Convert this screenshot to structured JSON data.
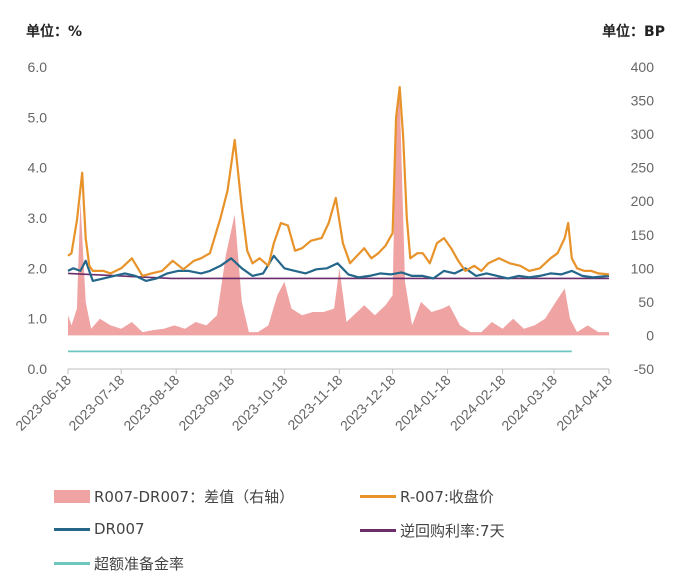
{
  "units": {
    "left": "单位：%",
    "right": "单位：BP"
  },
  "legend": [
    {
      "key": "spread",
      "label": "R007-DR007：差值（右轴）",
      "type": "box"
    },
    {
      "key": "r007",
      "label": "R-007:收盘价",
      "type": "line"
    },
    {
      "key": "dr007",
      "label": "DR007",
      "type": "line"
    },
    {
      "key": "repo",
      "label": "逆回购利率:7天",
      "type": "line"
    },
    {
      "key": "excess",
      "label": "超额准备金率",
      "type": "line"
    }
  ],
  "chart_data": {
    "type": "line",
    "x_tick_labels": [
      "2023-06-18",
      "2023-07-18",
      "2023-08-18",
      "2023-09-18",
      "2023-10-18",
      "2023-11-18",
      "2023-12-18",
      "2024-01-18",
      "2024-02-18",
      "2024-03-18",
      "2024-04-18"
    ],
    "y_left": {
      "min": 0,
      "max": 6,
      "ticks": [
        "0.0",
        "1.0",
        "2.0",
        "3.0",
        "4.0",
        "5.0",
        "6.0"
      ]
    },
    "y_right": {
      "min": -50,
      "max": 400,
      "ticks": [
        "-50",
        "0",
        "50",
        "100",
        "150",
        "200",
        "250",
        "300",
        "350",
        "400"
      ]
    },
    "colors": {
      "spread": "#f0a3a3",
      "r007": "#e8922a",
      "dr007": "#24678a",
      "repo": "#6b2d6b",
      "excess": "#6cc7c0"
    },
    "series": [
      {
        "name": "R-007:收盘价",
        "key": "r007",
        "axis": "left",
        "x": [
          "2023-06-18",
          "2023-06-20",
          "2023-06-23",
          "2023-06-26",
          "2023-06-28",
          "2023-06-30",
          "2023-07-02",
          "2023-07-04",
          "2023-07-08",
          "2023-07-12",
          "2023-07-18",
          "2023-07-24",
          "2023-07-30",
          "2023-08-04",
          "2023-08-10",
          "2023-08-16",
          "2023-08-22",
          "2023-08-28",
          "2023-09-01",
          "2023-09-06",
          "2023-09-12",
          "2023-09-16",
          "2023-09-20",
          "2023-09-24",
          "2023-09-27",
          "2023-09-30",
          "2023-10-04",
          "2023-10-09",
          "2023-10-12",
          "2023-10-16",
          "2023-10-20",
          "2023-10-24",
          "2023-10-28",
          "2023-11-02",
          "2023-11-08",
          "2023-11-12",
          "2023-11-16",
          "2023-11-20",
          "2023-11-24",
          "2023-11-28",
          "2023-12-02",
          "2023-12-06",
          "2023-12-10",
          "2023-12-14",
          "2023-12-18",
          "2023-12-20",
          "2023-12-22",
          "2023-12-24",
          "2023-12-26",
          "2023-12-28",
          "2024-01-01",
          "2024-01-04",
          "2024-01-08",
          "2024-01-12",
          "2024-01-16",
          "2024-01-20",
          "2024-01-24",
          "2024-01-28",
          "2024-02-02",
          "2024-02-06",
          "2024-02-10",
          "2024-02-16",
          "2024-02-22",
          "2024-02-28",
          "2024-03-04",
          "2024-03-10",
          "2024-03-16",
          "2024-03-20",
          "2024-03-24",
          "2024-03-26",
          "2024-03-28",
          "2024-03-31",
          "2024-04-04",
          "2024-04-08",
          "2024-04-12",
          "2024-04-18"
        ],
        "values": [
          2.25,
          2.3,
          2.95,
          3.9,
          2.6,
          2.05,
          1.95,
          1.95,
          1.95,
          1.9,
          2.0,
          2.2,
          1.85,
          1.9,
          1.95,
          2.15,
          1.98,
          2.15,
          2.2,
          2.3,
          3.0,
          3.55,
          4.55,
          3.2,
          2.35,
          2.1,
          2.2,
          2.05,
          2.5,
          2.9,
          2.85,
          2.35,
          2.4,
          2.55,
          2.6,
          2.9,
          3.4,
          2.5,
          2.1,
          2.25,
          2.4,
          2.2,
          2.3,
          2.45,
          2.7,
          5.0,
          5.6,
          4.6,
          3.0,
          2.2,
          2.3,
          2.3,
          2.1,
          2.5,
          2.6,
          2.4,
          2.15,
          1.95,
          2.05,
          1.95,
          2.1,
          2.2,
          2.1,
          2.05,
          1.95,
          2.0,
          2.2,
          2.3,
          2.6,
          2.9,
          2.2,
          2.0,
          1.95,
          1.95,
          1.9,
          1.88
        ]
      },
      {
        "name": "DR007",
        "key": "dr007",
        "axis": "left",
        "x": [
          "2023-06-18",
          "2023-06-21",
          "2023-06-25",
          "2023-06-28",
          "2023-07-02",
          "2023-07-08",
          "2023-07-14",
          "2023-07-20",
          "2023-07-26",
          "2023-08-01",
          "2023-08-07",
          "2023-08-13",
          "2023-08-19",
          "2023-08-25",
          "2023-09-01",
          "2023-09-06",
          "2023-09-12",
          "2023-09-18",
          "2023-09-24",
          "2023-09-30",
          "2023-10-06",
          "2023-10-12",
          "2023-10-18",
          "2023-10-24",
          "2023-10-30",
          "2023-11-05",
          "2023-11-11",
          "2023-11-17",
          "2023-11-23",
          "2023-11-29",
          "2023-12-05",
          "2023-12-11",
          "2023-12-17",
          "2023-12-23",
          "2023-12-29",
          "2024-01-04",
          "2024-01-10",
          "2024-01-16",
          "2024-01-22",
          "2024-01-28",
          "2024-02-03",
          "2024-02-09",
          "2024-02-15",
          "2024-02-21",
          "2024-02-27",
          "2024-03-04",
          "2024-03-10",
          "2024-03-16",
          "2024-03-22",
          "2024-03-28",
          "2024-04-03",
          "2024-04-09",
          "2024-04-18"
        ],
        "values": [
          1.95,
          2.0,
          1.95,
          2.15,
          1.75,
          1.8,
          1.85,
          1.9,
          1.85,
          1.75,
          1.8,
          1.9,
          1.95,
          1.95,
          1.9,
          1.95,
          2.05,
          2.2,
          2.0,
          1.85,
          1.9,
          2.25,
          2.0,
          1.95,
          1.9,
          1.98,
          2.0,
          2.1,
          1.88,
          1.82,
          1.85,
          1.9,
          1.88,
          1.92,
          1.85,
          1.85,
          1.8,
          1.95,
          1.9,
          2.0,
          1.85,
          1.9,
          1.85,
          1.8,
          1.85,
          1.82,
          1.85,
          1.9,
          1.88,
          1.95,
          1.85,
          1.82,
          1.85
        ]
      },
      {
        "name": "逆回购利率:7天",
        "key": "repo",
        "axis": "left",
        "x": [
          "2023-06-18",
          "2023-08-15",
          "2024-04-18"
        ],
        "values": [
          1.9,
          1.8,
          1.8
        ]
      },
      {
        "name": "超额准备金率",
        "key": "excess",
        "axis": "left",
        "x": [
          "2023-06-18",
          "2024-03-28"
        ],
        "values": [
          0.35,
          0.35
        ]
      },
      {
        "name": "R007-DR007：差值（右轴）",
        "key": "spread",
        "axis": "right",
        "x": [
          "2023-06-18",
          "2023-06-20",
          "2023-06-23",
          "2023-06-25",
          "2023-06-28",
          "2023-07-01",
          "2023-07-06",
          "2023-07-12",
          "2023-07-18",
          "2023-07-24",
          "2023-07-30",
          "2023-08-05",
          "2023-08-11",
          "2023-08-17",
          "2023-08-23",
          "2023-08-29",
          "2023-09-04",
          "2023-09-10",
          "2023-09-15",
          "2023-09-20",
          "2023-09-24",
          "2023-09-28",
          "2023-10-03",
          "2023-10-09",
          "2023-10-14",
          "2023-10-18",
          "2023-10-22",
          "2023-10-28",
          "2023-11-03",
          "2023-11-09",
          "2023-11-15",
          "2023-11-18",
          "2023-11-22",
          "2023-11-26",
          "2023-12-02",
          "2023-12-08",
          "2023-12-14",
          "2023-12-18",
          "2023-12-20",
          "2023-12-22",
          "2023-12-25",
          "2023-12-29",
          "2024-01-03",
          "2024-01-09",
          "2024-01-15",
          "2024-01-19",
          "2024-01-25",
          "2024-01-31",
          "2024-02-06",
          "2024-02-12",
          "2024-02-18",
          "2024-02-24",
          "2024-03-01",
          "2024-03-07",
          "2024-03-13",
          "2024-03-19",
          "2024-03-24",
          "2024-03-27",
          "2024-03-31",
          "2024-04-06",
          "2024-04-12",
          "2024-04-18"
        ],
        "values": [
          30,
          15,
          40,
          200,
          50,
          10,
          25,
          15,
          10,
          20,
          5,
          8,
          10,
          15,
          10,
          20,
          15,
          30,
          120,
          180,
          50,
          5,
          5,
          15,
          60,
          80,
          40,
          30,
          35,
          35,
          40,
          100,
          20,
          30,
          45,
          30,
          45,
          60,
          330,
          360,
          80,
          15,
          50,
          35,
          40,
          45,
          15,
          5,
          5,
          20,
          10,
          25,
          10,
          15,
          25,
          50,
          70,
          25,
          5,
          15,
          5,
          5
        ]
      }
    ]
  }
}
